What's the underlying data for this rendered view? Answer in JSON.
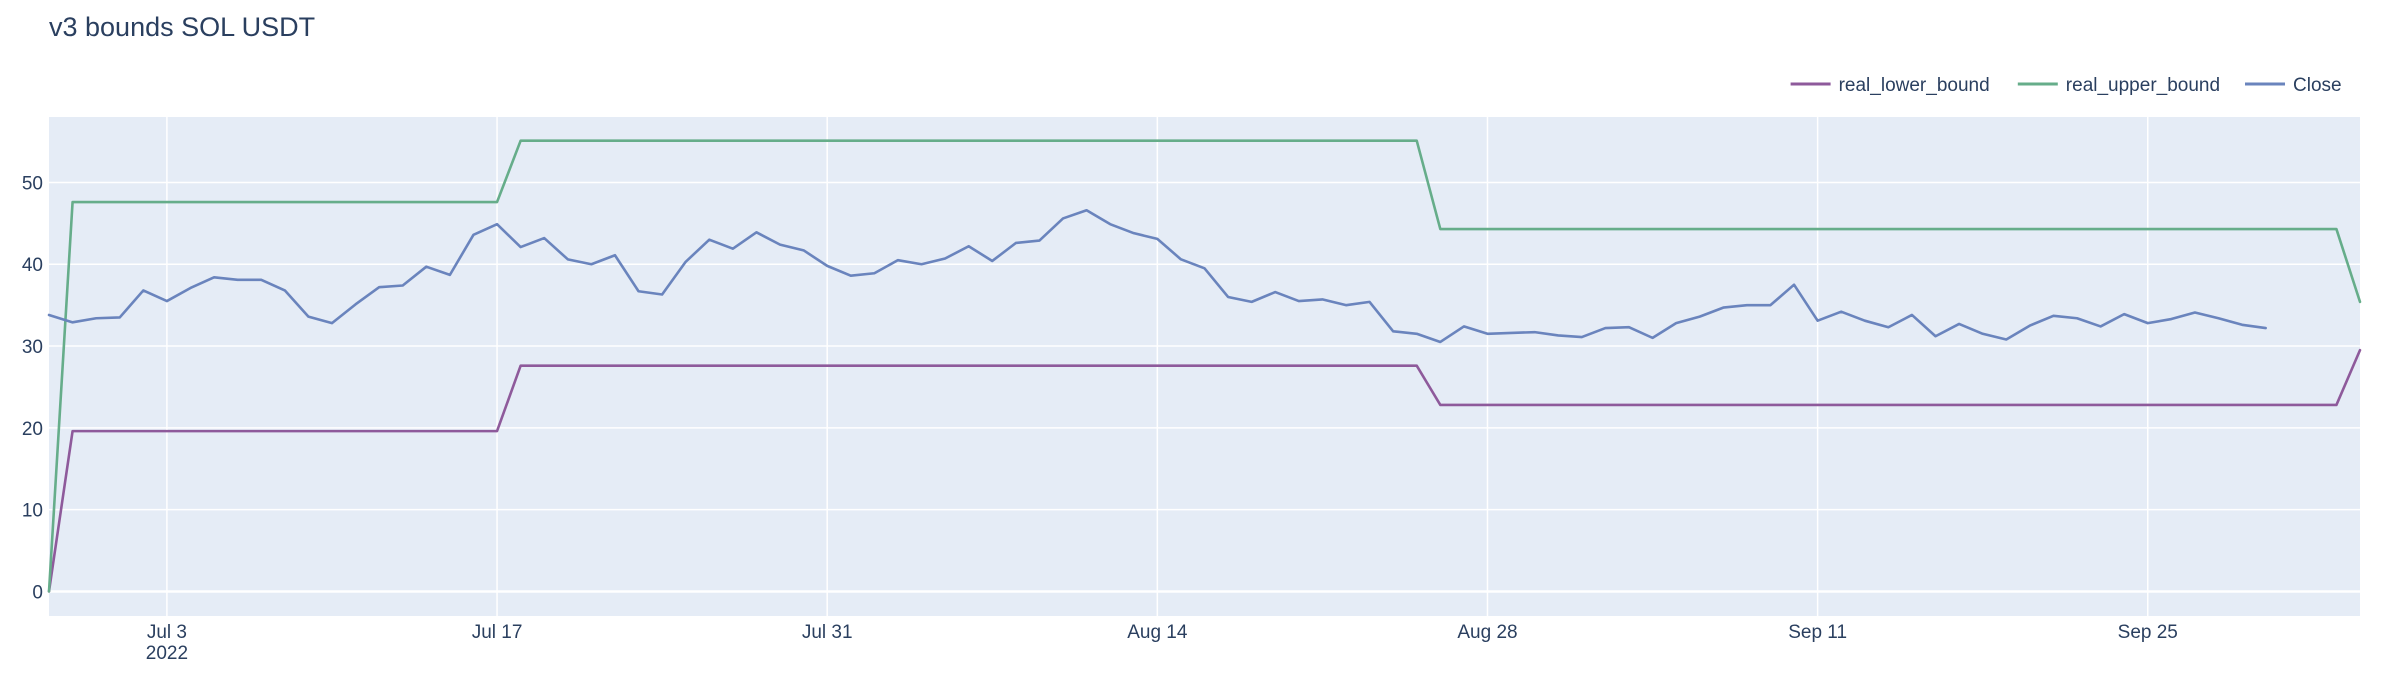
{
  "chart_data": {
    "type": "line",
    "title": "v3 bounds SOL USDT",
    "xlabel": "",
    "ylabel": "",
    "x_start": "2022-06-28",
    "x_end": "2022-10-04",
    "ylim": [
      -3,
      58
    ],
    "grid": true,
    "legend_position": "top-right",
    "plot_background": "#e5ecf6",
    "x_ticks": [
      {
        "date": "2022-07-03",
        "label": "Jul 3",
        "sublabel": "2022"
      },
      {
        "date": "2022-07-17",
        "label": "Jul 17"
      },
      {
        "date": "2022-07-31",
        "label": "Jul 31"
      },
      {
        "date": "2022-08-14",
        "label": "Aug 14"
      },
      {
        "date": "2022-08-28",
        "label": "Aug 28"
      },
      {
        "date": "2022-09-11",
        "label": "Sep 11"
      },
      {
        "date": "2022-09-25",
        "label": "Sep 25"
      }
    ],
    "y_ticks": [
      0,
      10,
      20,
      30,
      40,
      50
    ],
    "series": [
      {
        "name": "real_lower_bound",
        "color": "#8e5a9b",
        "points": [
          [
            "2022-06-28",
            0
          ],
          [
            "2022-06-29",
            19.6
          ],
          [
            "2022-07-17",
            19.6
          ],
          [
            "2022-07-18",
            27.6
          ],
          [
            "2022-08-25",
            27.6
          ],
          [
            "2022-08-26",
            22.8
          ],
          [
            "2022-10-03",
            22.8
          ],
          [
            "2022-10-04",
            29.5
          ]
        ]
      },
      {
        "name": "real_upper_bound",
        "color": "#66ad8a",
        "points": [
          [
            "2022-06-28",
            0
          ],
          [
            "2022-06-29",
            47.6
          ],
          [
            "2022-07-17",
            47.6
          ],
          [
            "2022-07-18",
            55.1
          ],
          [
            "2022-08-25",
            55.1
          ],
          [
            "2022-08-26",
            44.3
          ],
          [
            "2022-10-03",
            44.3
          ],
          [
            "2022-10-04",
            35.4
          ]
        ]
      },
      {
        "name": "Close",
        "color": "#6a84bd",
        "points": [
          [
            "2022-06-28",
            33.8
          ],
          [
            "2022-06-29",
            32.9
          ],
          [
            "2022-06-30",
            33.4
          ],
          [
            "2022-07-01",
            33.5
          ],
          [
            "2022-07-02",
            36.8
          ],
          [
            "2022-07-03",
            35.5
          ],
          [
            "2022-07-04",
            37.1
          ],
          [
            "2022-07-05",
            38.4
          ],
          [
            "2022-07-06",
            38.1
          ],
          [
            "2022-07-07",
            38.1
          ],
          [
            "2022-07-08",
            36.8
          ],
          [
            "2022-07-09",
            33.6
          ],
          [
            "2022-07-10",
            32.8
          ],
          [
            "2022-07-11",
            35.1
          ],
          [
            "2022-07-12",
            37.2
          ],
          [
            "2022-07-13",
            37.4
          ],
          [
            "2022-07-14",
            39.7
          ],
          [
            "2022-07-15",
            38.7
          ],
          [
            "2022-07-16",
            43.6
          ],
          [
            "2022-07-17",
            44.9
          ],
          [
            "2022-07-18",
            42.1
          ],
          [
            "2022-07-19",
            43.2
          ],
          [
            "2022-07-20",
            40.6
          ],
          [
            "2022-07-21",
            40.0
          ],
          [
            "2022-07-22",
            41.1
          ],
          [
            "2022-07-23",
            36.7
          ],
          [
            "2022-07-24",
            36.3
          ],
          [
            "2022-07-25",
            40.3
          ],
          [
            "2022-07-26",
            43.0
          ],
          [
            "2022-07-27",
            41.9
          ],
          [
            "2022-07-28",
            43.9
          ],
          [
            "2022-07-29",
            42.4
          ],
          [
            "2022-07-30",
            41.7
          ],
          [
            "2022-07-31",
            39.8
          ],
          [
            "2022-08-01",
            38.6
          ],
          [
            "2022-08-02",
            38.9
          ],
          [
            "2022-08-03",
            40.5
          ],
          [
            "2022-08-04",
            40.0
          ],
          [
            "2022-08-05",
            40.7
          ],
          [
            "2022-08-06",
            42.2
          ],
          [
            "2022-08-07",
            40.4
          ],
          [
            "2022-08-08",
            42.6
          ],
          [
            "2022-08-09",
            42.9
          ],
          [
            "2022-08-10",
            45.6
          ],
          [
            "2022-08-11",
            46.6
          ],
          [
            "2022-08-12",
            44.9
          ],
          [
            "2022-08-13",
            43.8
          ],
          [
            "2022-08-14",
            43.1
          ],
          [
            "2022-08-15",
            40.6
          ],
          [
            "2022-08-16",
            39.5
          ],
          [
            "2022-08-17",
            36.0
          ],
          [
            "2022-08-18",
            35.4
          ],
          [
            "2022-08-19",
            36.6
          ],
          [
            "2022-08-20",
            35.5
          ],
          [
            "2022-08-21",
            35.7
          ],
          [
            "2022-08-22",
            35.0
          ],
          [
            "2022-08-23",
            35.4
          ],
          [
            "2022-08-24",
            31.8
          ],
          [
            "2022-08-25",
            31.5
          ],
          [
            "2022-08-26",
            30.5
          ],
          [
            "2022-08-27",
            32.4
          ],
          [
            "2022-08-28",
            31.5
          ],
          [
            "2022-08-29",
            31.6
          ],
          [
            "2022-08-30",
            31.7
          ],
          [
            "2022-08-31",
            31.3
          ],
          [
            "2022-09-01",
            31.1
          ],
          [
            "2022-09-02",
            32.2
          ],
          [
            "2022-09-03",
            32.3
          ],
          [
            "2022-09-04",
            31.0
          ],
          [
            "2022-09-05",
            32.8
          ],
          [
            "2022-09-06",
            33.6
          ],
          [
            "2022-09-07",
            34.7
          ],
          [
            "2022-09-08",
            35.0
          ],
          [
            "2022-09-09",
            35.0
          ],
          [
            "2022-09-10",
            37.5
          ],
          [
            "2022-09-11",
            33.1
          ],
          [
            "2022-09-12",
            34.2
          ],
          [
            "2022-09-13",
            33.1
          ],
          [
            "2022-09-14",
            32.3
          ],
          [
            "2022-09-15",
            33.8
          ],
          [
            "2022-09-16",
            31.2
          ],
          [
            "2022-09-17",
            32.7
          ],
          [
            "2022-09-18",
            31.5
          ],
          [
            "2022-09-19",
            30.8
          ],
          [
            "2022-09-20",
            32.5
          ],
          [
            "2022-09-21",
            33.7
          ],
          [
            "2022-09-22",
            33.4
          ],
          [
            "2022-09-23",
            32.4
          ],
          [
            "2022-09-24",
            33.9
          ],
          [
            "2022-09-25",
            32.8
          ],
          [
            "2022-09-26",
            33.3
          ],
          [
            "2022-09-27",
            34.1
          ],
          [
            "2022-09-28",
            33.4
          ],
          [
            "2022-09-29",
            32.6
          ],
          [
            "2022-09-30",
            32.2
          ]
        ]
      }
    ]
  }
}
